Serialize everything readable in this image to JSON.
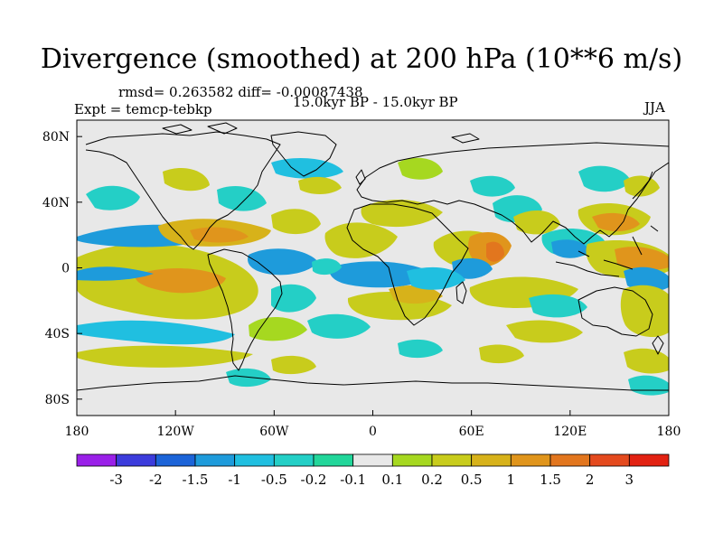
{
  "title": "Divergence (smoothed) at 200 hPa (10**6 m/s)",
  "stats": "rmsd= 0.263582 diff= -0.00087438",
  "experiment": "Expt = temcp-tebkp",
  "period": "15.0kyr BP - 15.0kyr BP",
  "season": "JJA",
  "colors": {
    "background": "#e8e8e8",
    "coast": "#000000"
  },
  "axes": {
    "x_ticks": [
      "180",
      "120W",
      "60W",
      "0",
      "60E",
      "120E",
      "180"
    ],
    "y_ticks": [
      "80N",
      "40N",
      "0",
      "40S",
      "80S"
    ]
  },
  "colorbar": {
    "colors": [
      "#9a20e8",
      "#3c3cdc",
      "#1c64d8",
      "#1e9bdb",
      "#20bfe0",
      "#24cfc6",
      "#22d69a",
      "#e8e8e8",
      "#a6d820",
      "#c8cc1c",
      "#d7b21a",
      "#e0951c",
      "#e2761e",
      "#e44a1e",
      "#e22212"
    ],
    "labels": [
      "-3",
      "-2",
      "-1.5",
      "-1",
      "-0.5",
      "-0.2",
      "-0.1",
      "0.1",
      "0.2",
      "0.5",
      "1",
      "1.5",
      "2",
      "3"
    ]
  },
  "chart_data": {
    "type": "map",
    "title": "Divergence (smoothed) at 200 hPa (10**6 m/s)",
    "units": "10**6 m/s",
    "xlim": [
      -180,
      180
    ],
    "ylim": [
      -90,
      90
    ],
    "levels": [
      -3,
      -2,
      -1.5,
      -1,
      -0.5,
      -0.2,
      -0.1,
      0.1,
      0.2,
      0.5,
      1,
      1.5,
      2,
      3
    ],
    "fields": [
      {
        "lon": -120,
        "lat": -15,
        "value": 0.9
      },
      {
        "lon": -150,
        "lat": 12,
        "value": -0.9
      },
      {
        "lon": -80,
        "lat": 28,
        "value": 1.0
      },
      {
        "lon": -85,
        "lat": 5,
        "value": -0.6
      },
      {
        "lon": -30,
        "lat": 10,
        "value": -0.6
      },
      {
        "lon": -20,
        "lat": -12,
        "value": 0.6
      },
      {
        "lon": 45,
        "lat": 5,
        "value": 1.2
      },
      {
        "lon": 30,
        "lat": 30,
        "value": 0.6
      },
      {
        "lon": 20,
        "lat": -10,
        "value": -0.7
      },
      {
        "lon": 100,
        "lat": 20,
        "value": -0.5
      },
      {
        "lon": 140,
        "lat": 10,
        "value": 1.3
      },
      {
        "lon": 150,
        "lat": -15,
        "value": 0.6
      },
      {
        "lon": 120,
        "lat": 45,
        "value": 0.4
      },
      {
        "lon": -150,
        "lat": 42,
        "value": -0.4
      },
      {
        "lon": -60,
        "lat": -40,
        "value": -0.3
      },
      {
        "lon": 60,
        "lat": -45,
        "value": 0.4
      },
      {
        "lon": 170,
        "lat": -35,
        "value": 0.5
      },
      {
        "lon": -10,
        "lat": 50,
        "value": 0.4
      }
    ]
  }
}
